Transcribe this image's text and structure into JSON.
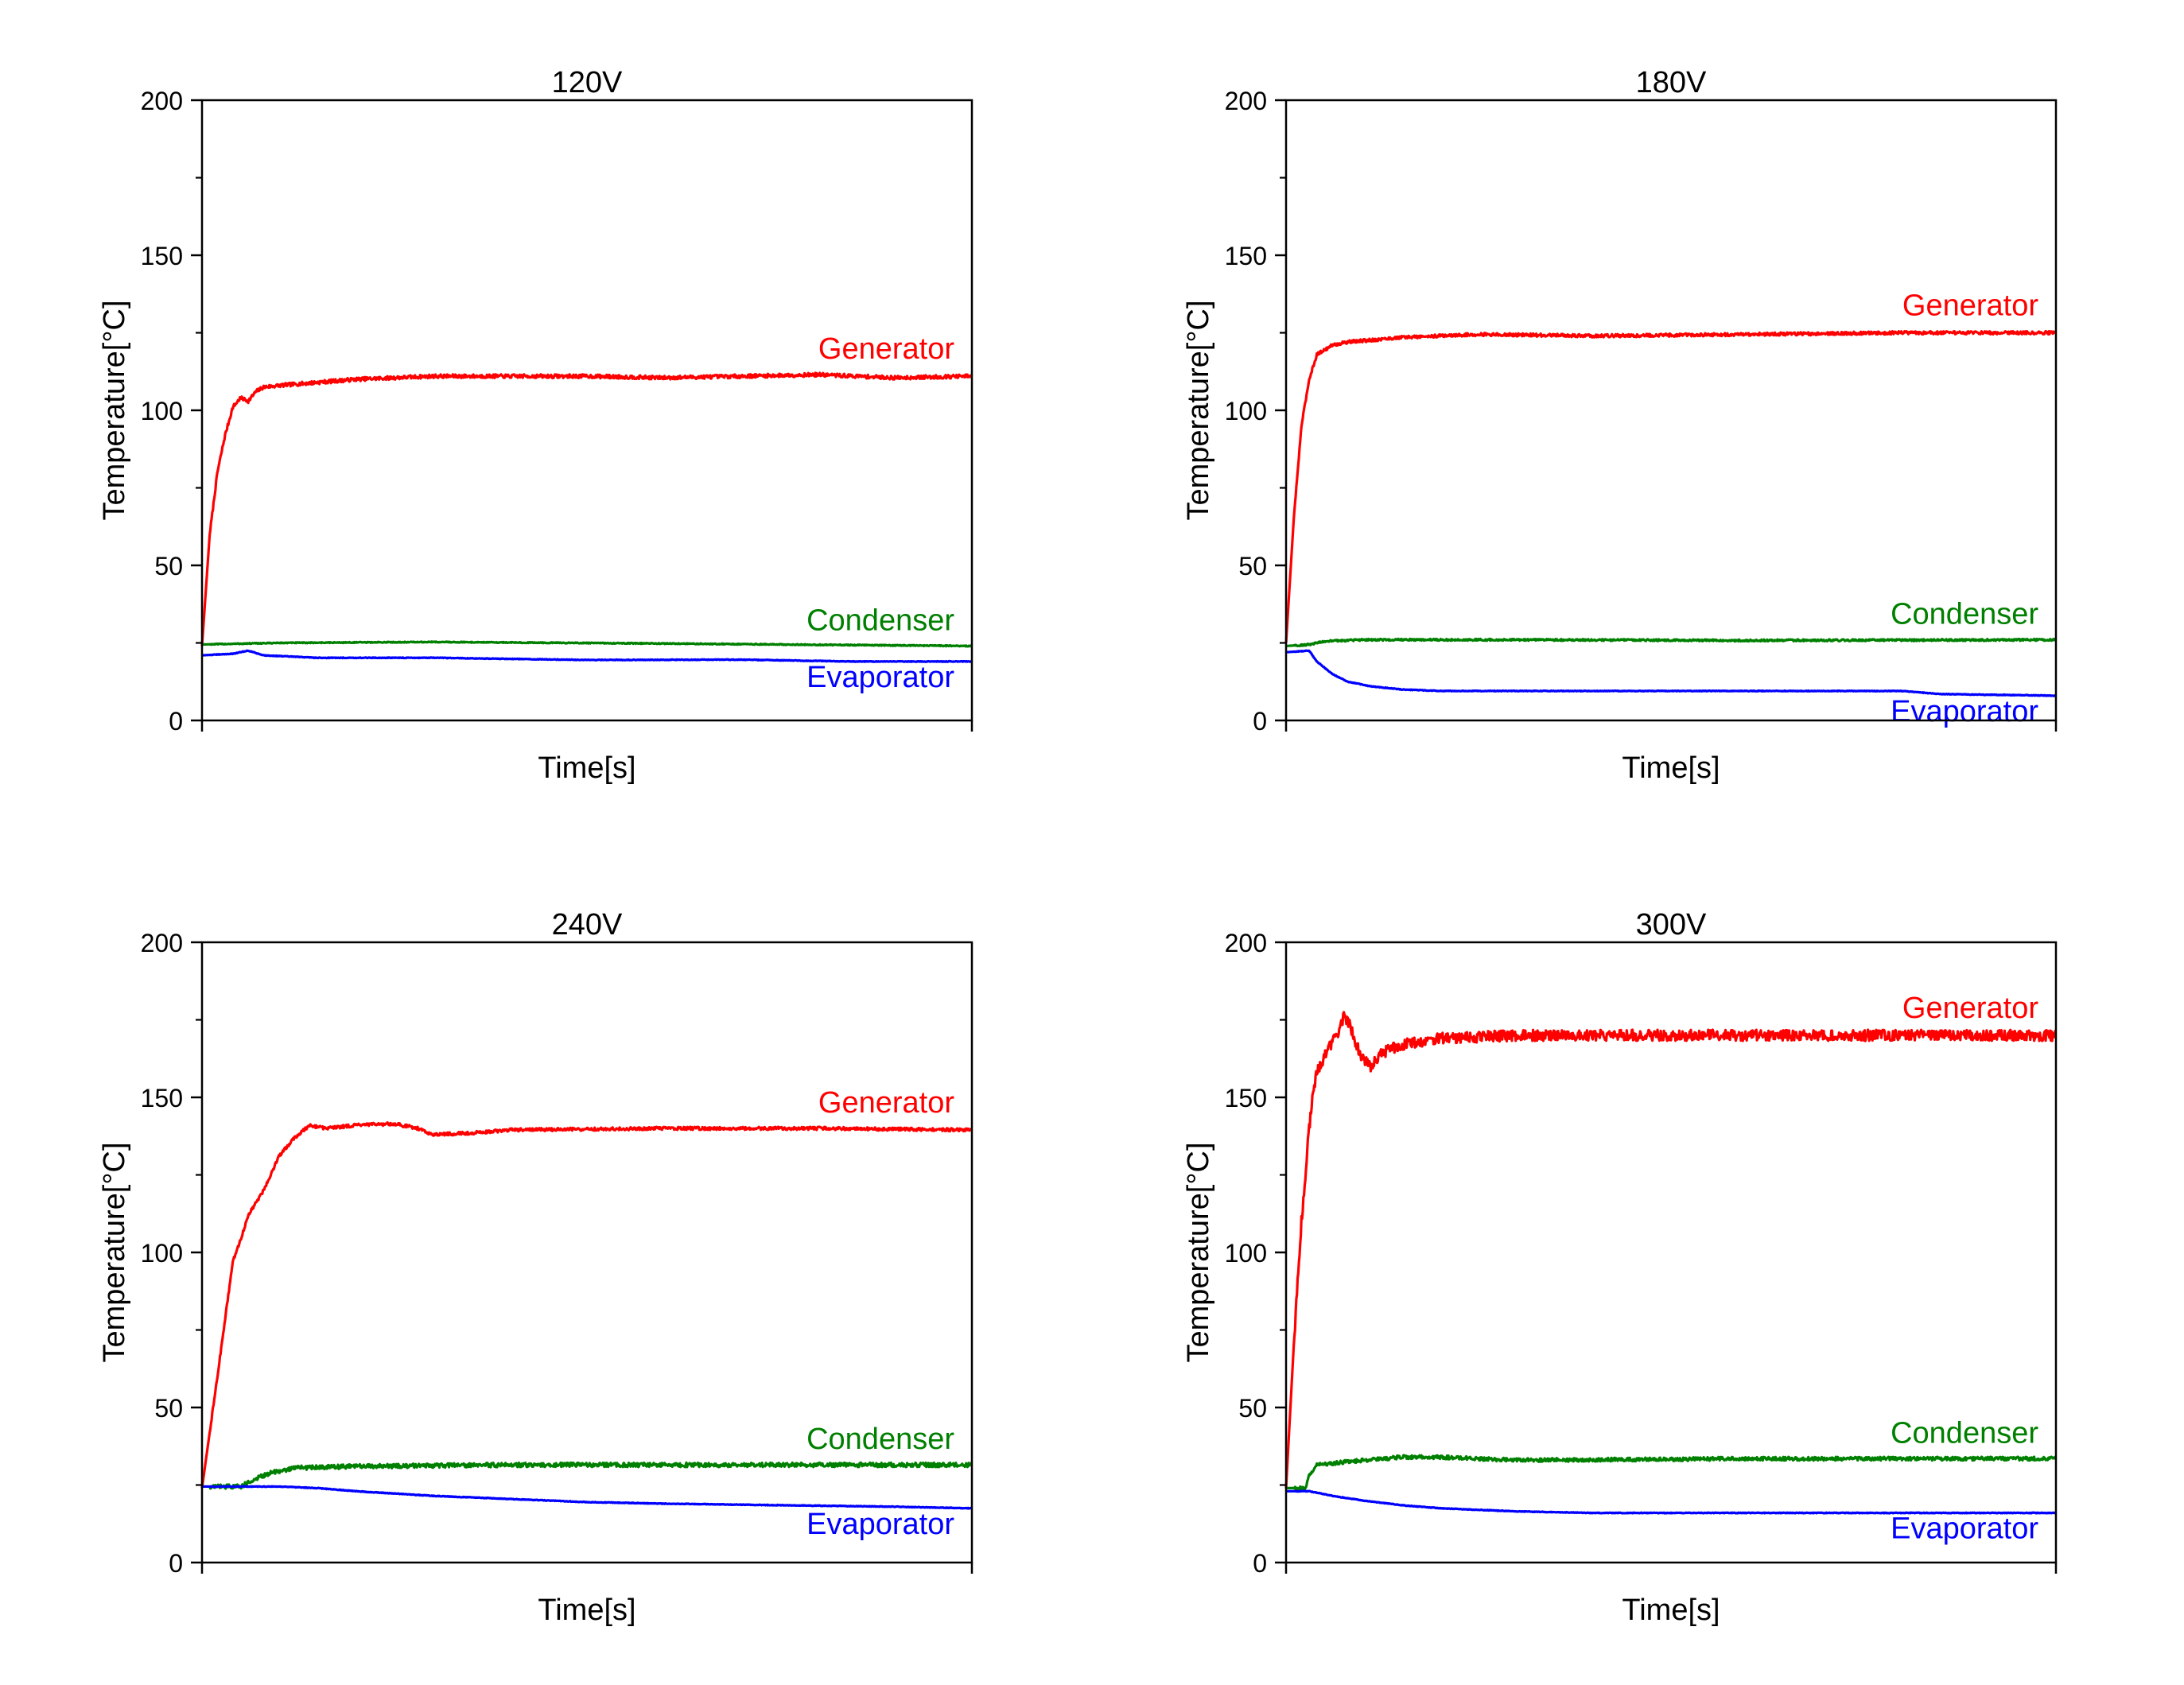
{
  "colors": {
    "generator": "#ff0000",
    "condenser": "#008000",
    "evaporator": "#0000ff",
    "axis": "#000000"
  },
  "chart_data": [
    {
      "type": "line",
      "title": "120V",
      "xlabel": "Time[s]",
      "ylabel": "Temperature[°C]",
      "ylim": [
        0,
        200
      ],
      "yticks": [
        0,
        50,
        100,
        150,
        200
      ],
      "x_range": [
        0,
        100
      ],
      "grid": false,
      "legend": "inline labels at right end of each line",
      "series": [
        {
          "name": "Generator",
          "color": "#ff0000",
          "noise": 0.6,
          "x": [
            0,
            1,
            2,
            3,
            4,
            5,
            6,
            7,
            8,
            10,
            15,
            20,
            30,
            40,
            50,
            60,
            70,
            80,
            90,
            100
          ],
          "y": [
            24,
            60,
            80,
            92,
            101,
            104,
            103,
            106,
            107.5,
            108,
            109,
            110,
            111,
            111,
            111,
            110.5,
            111,
            111.5,
            110.5,
            111
          ]
        },
        {
          "name": "Condenser",
          "color": "#008000",
          "noise": 0.15,
          "x": [
            0,
            10,
            30,
            60,
            100
          ],
          "y": [
            24.5,
            25,
            25.3,
            24.8,
            24
          ]
        },
        {
          "name": "Evaporator",
          "color": "#0000ff",
          "noise": 0.1,
          "x": [
            0,
            4,
            6,
            8,
            15,
            30,
            50,
            70,
            85,
            100
          ],
          "y": [
            21,
            21.5,
            22.5,
            21,
            20.2,
            20.2,
            19.5,
            19.6,
            19,
            19
          ]
        }
      ]
    },
    {
      "type": "line",
      "title": "180V",
      "xlabel": "Time[s]",
      "ylabel": "Temperature[°C]",
      "ylim": [
        0,
        200
      ],
      "yticks": [
        0,
        50,
        100,
        150,
        200
      ],
      "x_range": [
        0,
        100
      ],
      "grid": false,
      "legend": "inline labels at right end of each line",
      "series": [
        {
          "name": "Generator",
          "color": "#ff0000",
          "noise": 0.5,
          "x": [
            0,
            1,
            2,
            3,
            4,
            6,
            8,
            15,
            25,
            40,
            60,
            80,
            100
          ],
          "y": [
            25,
            65,
            95,
            110,
            118,
            121,
            122,
            123.5,
            124.5,
            124,
            124.5,
            125,
            125
          ]
        },
        {
          "name": "Condenser",
          "color": "#008000",
          "noise": 0.3,
          "x": [
            0,
            3,
            5,
            10,
            30,
            60,
            100
          ],
          "y": [
            24,
            24.5,
            25.5,
            26,
            26,
            25.8,
            26
          ]
        },
        {
          "name": "Evaporator",
          "color": "#0000ff",
          "noise": 0.1,
          "x": [
            0,
            3,
            4,
            6,
            8,
            11,
            15,
            20,
            40,
            60,
            80,
            85,
            100
          ],
          "y": [
            22,
            22.5,
            19,
            15,
            12.5,
            11,
            10,
            9.5,
            9.5,
            9.5,
            9.5,
            8.5,
            8
          ]
        }
      ]
    },
    {
      "type": "line",
      "title": "240V",
      "xlabel": "Time[s]",
      "ylabel": "Temperature[°C]",
      "ylim": [
        0,
        200
      ],
      "yticks": [
        0,
        50,
        100,
        150,
        200
      ],
      "x_range": [
        0,
        100
      ],
      "grid": false,
      "legend": "inline labels at right end of each line",
      "series": [
        {
          "name": "Generator",
          "color": "#ff0000",
          "noise": 0.5,
          "x": [
            0,
            2,
            4,
            5,
            6,
            8,
            10,
            12,
            14,
            16,
            20,
            25,
            28,
            30,
            35,
            40,
            60,
            80,
            100
          ],
          "y": [
            24,
            60,
            97,
            104,
            112,
            120,
            131,
            137,
            141,
            140,
            141,
            141.5,
            140,
            138,
            138.5,
            139.5,
            140,
            140,
            139.5
          ]
        },
        {
          "name": "Condenser",
          "color": "#008000",
          "noise": 0.7,
          "x": [
            0,
            5,
            7,
            9,
            12,
            20,
            40,
            60,
            80,
            100
          ],
          "y": [
            24.5,
            24.5,
            27,
            29,
            30.5,
            31,
            31.5,
            31.5,
            31.5,
            31.5
          ]
        },
        {
          "name": "Evaporator",
          "color": "#0000ff",
          "noise": 0.1,
          "x": [
            0,
            10,
            15,
            20,
            30,
            40,
            50,
            60,
            75,
            90,
            100
          ],
          "y": [
            24.5,
            24.5,
            24,
            23,
            21.5,
            20.5,
            19.5,
            19,
            18.5,
            18,
            17.5
          ]
        }
      ]
    },
    {
      "type": "line",
      "title": "300V",
      "xlabel": "Time[s]",
      "ylabel": "Temperature[°C]",
      "ylim": [
        0,
        200
      ],
      "yticks": [
        0,
        50,
        100,
        150,
        200
      ],
      "x_range": [
        0,
        100
      ],
      "grid": false,
      "legend": "inline labels at right end of each line",
      "series": [
        {
          "name": "Generator",
          "color": "#ff0000",
          "noise": 1.8,
          "x": [
            0,
            1,
            2,
            3,
            3.5,
            4,
            5,
            6,
            7,
            7.5,
            8,
            9,
            10,
            11,
            12,
            13,
            15,
            20,
            30,
            50,
            70,
            90,
            100
          ],
          "y": [
            24,
            70,
            110,
            140,
            152,
            158,
            163,
            168,
            172,
            176,
            175,
            168,
            162,
            160,
            163,
            165,
            167,
            169,
            170,
            170,
            170,
            170,
            170
          ]
        },
        {
          "name": "Condenser",
          "color": "#008000",
          "noise": 0.6,
          "x": [
            0,
            2.5,
            3,
            4,
            8,
            15,
            20,
            30,
            60,
            100
          ],
          "y": [
            24,
            24,
            28,
            31.5,
            32.5,
            34,
            34,
            33,
            33.5,
            33.5
          ]
        },
        {
          "name": "Evaporator",
          "color": "#0000ff",
          "noise": 0.1,
          "x": [
            0,
            3,
            6,
            10,
            15,
            20,
            30,
            40,
            60,
            80,
            100
          ],
          "y": [
            23,
            23,
            21.5,
            20,
            18.5,
            17.5,
            16.5,
            16,
            16,
            16,
            16
          ]
        }
      ]
    }
  ]
}
